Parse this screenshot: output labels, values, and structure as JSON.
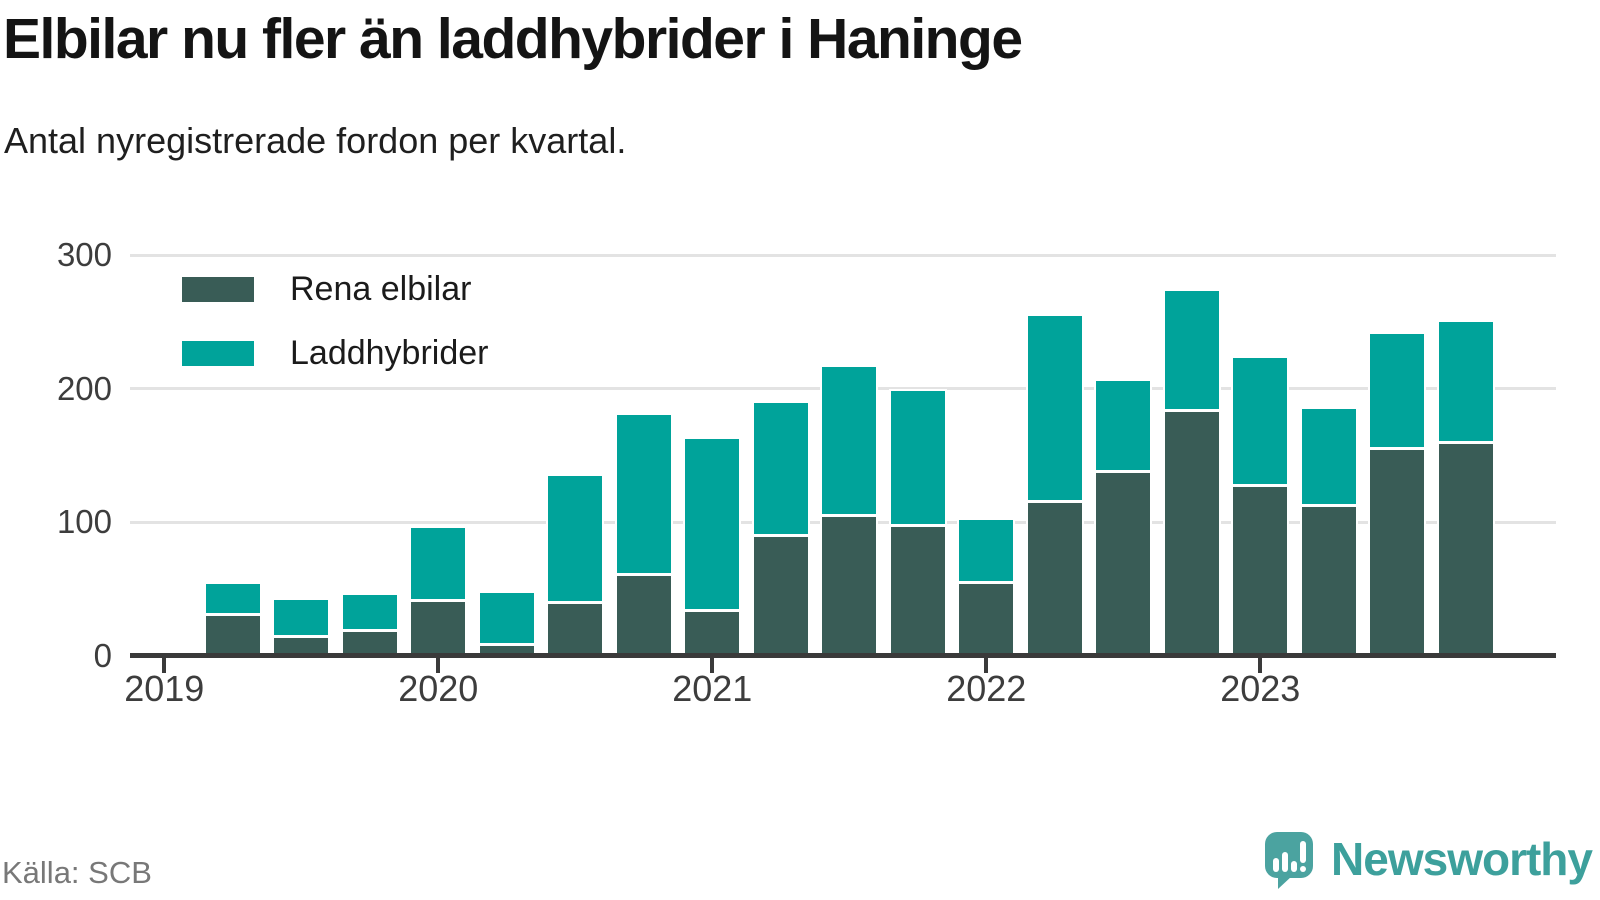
{
  "header": {
    "title": "Elbilar nu fler än laddhybrider i Haninge",
    "subtitle": "Antal nyregistrerade fordon per kvartal."
  },
  "legend": {
    "items": [
      {
        "label": "Rena elbilar",
        "color": "#395c56"
      },
      {
        "label": "Laddhybrider",
        "color": "#00a39a"
      }
    ]
  },
  "footer": {
    "source": "Källa: SCB",
    "brand": "Newsworthy"
  },
  "colors": {
    "rena_elbilar": "#395c56",
    "laddhybrider": "#00a39a",
    "brand_teal": "#3da09c",
    "grid": "#e3e3e3",
    "axis": "#3a3a3a",
    "muted_text": "#787878"
  },
  "chart_data": {
    "type": "bar",
    "stacked": true,
    "title": "Elbilar nu fler än laddhybrider i Haninge",
    "subtitle": "Antal nyregistrerade fordon per kvartal.",
    "xlabel": "",
    "ylabel": "",
    "grid": "horizontal",
    "legend_position": "top-left",
    "ylim": [
      0,
      300
    ],
    "y_ticks": [
      0,
      100,
      200,
      300
    ],
    "x_tick_labels": [
      "2019",
      "2020",
      "2021",
      "2022",
      "2023"
    ],
    "categories": [
      "2019 Q1",
      "2019 Q2",
      "2019 Q3",
      "2019 Q4",
      "2020 Q1",
      "2020 Q2",
      "2020 Q3",
      "2020 Q4",
      "2021 Q1",
      "2021 Q2",
      "2021 Q3",
      "2021 Q4",
      "2022 Q1",
      "2022 Q2",
      "2022 Q3",
      "2022 Q4",
      "2023 Q1",
      "2023 Q2",
      "2023 Q3",
      "2023 Q4"
    ],
    "series": [
      {
        "name": "Rena elbilar",
        "color": "#395c56",
        "values": [
          0,
          32,
          16,
          20,
          43,
          10,
          41,
          62,
          35,
          91,
          106,
          99,
          56,
          117,
          139,
          185,
          129,
          114,
          156,
          161
        ]
      },
      {
        "name": "Laddhybrider",
        "color": "#00a39a",
        "values": [
          0,
          22,
          26,
          26,
          53,
          37,
          94,
          118,
          127,
          98,
          110,
          99,
          46,
          137,
          67,
          88,
          94,
          71,
          85,
          89
        ]
      }
    ]
  }
}
